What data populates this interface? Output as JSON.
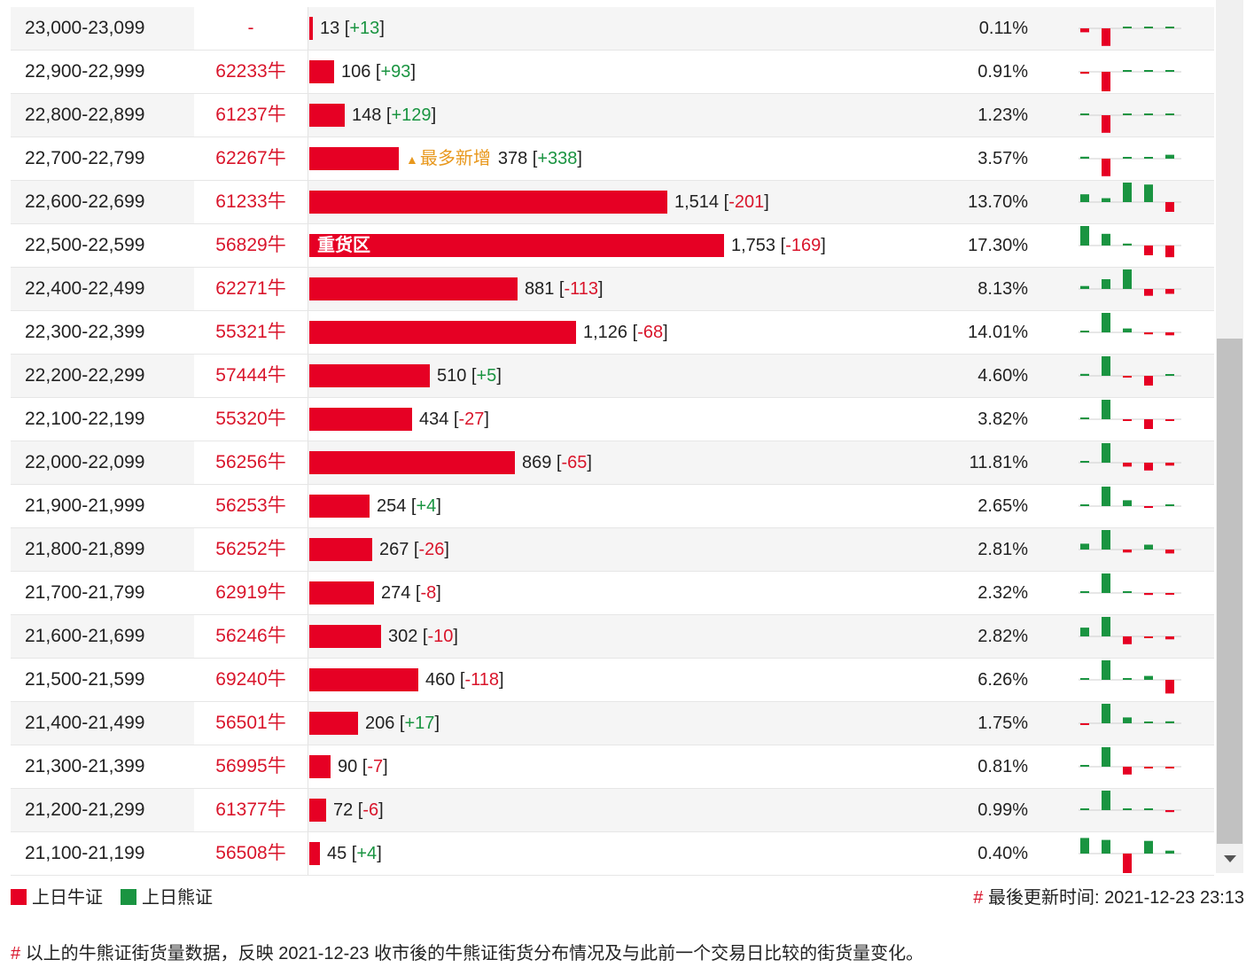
{
  "rows": [
    {
      "range": "23,000-23,099",
      "code": "-",
      "count": 13,
      "count_text": "13",
      "change": "+13",
      "pct": "0.11%",
      "spark": [
        -0.2,
        -0.9,
        0,
        0,
        0.05
      ]
    },
    {
      "range": "22,900-22,999",
      "code": "62233牛",
      "count": 106,
      "count_text": "106",
      "change": "+93",
      "pct": "0.91%",
      "spark": [
        -0.1,
        -1.0,
        0,
        0.02,
        0.02
      ]
    },
    {
      "range": "22,800-22,899",
      "code": "61237牛",
      "count": 148,
      "count_text": "148",
      "change": "+129",
      "pct": "1.23%",
      "spark": [
        0.02,
        -0.9,
        0,
        0.02,
        0.02
      ]
    },
    {
      "range": "22,700-22,799",
      "code": "62267牛",
      "count": 378,
      "count_text": "378",
      "change": "+338",
      "pct": "3.57%",
      "tag": "最多新增",
      "spark": [
        0.1,
        -0.9,
        0,
        0.05,
        0.2
      ]
    },
    {
      "range": "22,600-22,699",
      "code": "61233牛",
      "count": 1514,
      "count_text": "1,514",
      "change": "-201",
      "pct": "13.70%",
      "spark": [
        0.4,
        0.2,
        1.0,
        0.9,
        -0.5
      ]
    },
    {
      "range": "22,500-22,599",
      "code": "56829牛",
      "count": 1753,
      "count_text": "1,753",
      "change": "-169",
      "pct": "17.30%",
      "zone": "重货区",
      "spark": [
        1.0,
        0.6,
        0.1,
        -0.5,
        -0.6
      ]
    },
    {
      "range": "22,400-22,499",
      "code": "62271牛",
      "count": 881,
      "count_text": "881",
      "change": "-113",
      "pct": "8.13%",
      "spark": [
        0.15,
        0.5,
        1.0,
        -0.35,
        -0.25
      ]
    },
    {
      "range": "22,300-22,399",
      "code": "55321牛",
      "count": 1126,
      "count_text": "1,126",
      "change": "-68",
      "pct": "14.01%",
      "spark": [
        0.02,
        1.0,
        0.2,
        -0.1,
        -0.15
      ]
    },
    {
      "range": "22,200-22,299",
      "code": "57444牛",
      "count": 510,
      "count_text": "510",
      "change": "+5",
      "pct": "4.60%",
      "spark": [
        0.1,
        1.0,
        -0.05,
        -0.5,
        0.02
      ]
    },
    {
      "range": "22,100-22,199",
      "code": "55320牛",
      "count": 434,
      "count_text": "434",
      "change": "-27",
      "pct": "3.82%",
      "spark": [
        0.02,
        1.0,
        -0.05,
        -0.5,
        -0.05
      ]
    },
    {
      "range": "22,000-22,099",
      "code": "56256牛",
      "count": 869,
      "count_text": "869",
      "change": "-65",
      "pct": "11.81%",
      "spark": [
        0.02,
        1.0,
        -0.2,
        -0.4,
        -0.15
      ]
    },
    {
      "range": "21,900-21,999",
      "code": "56253牛",
      "count": 254,
      "count_text": "254",
      "change": "+4",
      "pct": "2.65%",
      "spark": [
        0.02,
        1.0,
        0.3,
        -0.05,
        0
      ]
    },
    {
      "range": "21,800-21,899",
      "code": "56252牛",
      "count": 267,
      "count_text": "267",
      "change": "-26",
      "pct": "2.81%",
      "spark": [
        0.3,
        1.0,
        -0.15,
        0.25,
        -0.2
      ]
    },
    {
      "range": "21,700-21,799",
      "code": "62919牛",
      "count": 274,
      "count_text": "274",
      "change": "-8",
      "pct": "2.32%",
      "spark": [
        0.02,
        1.0,
        0.05,
        -0.1,
        -0.05
      ]
    },
    {
      "range": "21,600-21,699",
      "code": "56246牛",
      "count": 302,
      "count_text": "302",
      "change": "-10",
      "pct": "2.82%",
      "spark": [
        0.45,
        1.0,
        -0.4,
        -0.05,
        -0.15
      ]
    },
    {
      "range": "21,500-21,599",
      "code": "69240牛",
      "count": 460,
      "count_text": "460",
      "change": "-118",
      "pct": "6.26%",
      "spark": [
        0.02,
        1.0,
        0.05,
        0.2,
        -0.7
      ]
    },
    {
      "range": "21,400-21,499",
      "code": "56501牛",
      "count": 206,
      "count_text": "206",
      "change": "+17",
      "pct": "1.75%",
      "spark": [
        -0.05,
        1.0,
        0.3,
        0.05,
        0.1
      ]
    },
    {
      "range": "21,300-21,399",
      "code": "56995牛",
      "count": 90,
      "count_text": "90",
      "change": "-7",
      "pct": "0.81%",
      "spark": [
        0,
        1.0,
        -0.4,
        -0.05,
        -0.05
      ]
    },
    {
      "range": "21,200-21,299",
      "code": "61377牛",
      "count": 72,
      "count_text": "72",
      "change": "-6",
      "pct": "0.99%",
      "spark": [
        0.02,
        1.0,
        0,
        0.05,
        -0.1
      ]
    },
    {
      "range": "21,100-21,199",
      "code": "56508牛",
      "count": 45,
      "count_text": "45",
      "change": "+4",
      "pct": "0.40%",
      "spark": [
        0.8,
        0.7,
        -1.0,
        0.65,
        0.15
      ]
    }
  ],
  "legend": {
    "bull_label": "上日牛证",
    "bear_label": "上日熊证",
    "bull_color": "#e60024",
    "bear_color": "#1a9441"
  },
  "footer": {
    "hash": "#",
    "updated_label": "最後更新时间: 2021-12-23 23:13",
    "note": "以上的牛熊证街货量数据，反映 2021-12-23 收市後的牛熊证街货分布情况及与此前一个交易日比较的街货量变化。"
  },
  "colors": {
    "bull": "#e60024",
    "bear": "#1a9441",
    "code": "#d9152b",
    "tag": "#e8981d"
  }
}
